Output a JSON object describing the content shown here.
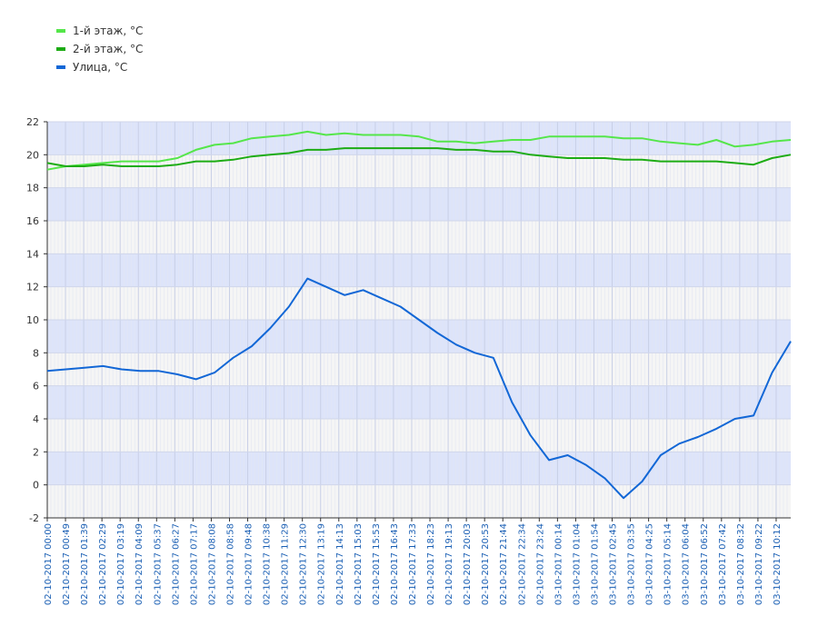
{
  "chart_data": {
    "type": "line",
    "title": "",
    "xlabel": "",
    "ylabel": "",
    "ylim": [
      -2,
      22
    ],
    "yticks": [
      -2,
      0,
      2,
      4,
      6,
      8,
      10,
      12,
      14,
      16,
      18,
      20,
      22
    ],
    "grid": true,
    "legend_position": "top-left",
    "band_colors": [
      "#dde4fa",
      "#f5f5f5"
    ],
    "x_start": "2017-10-02 00:00",
    "x_end": "2017-10-03 10:40",
    "x_tick_labels": [
      "02-10-2017 00:00",
      "02-10-2017 00:49",
      "02-10-2017 01:39",
      "02-10-2017 02:29",
      "02-10-2017 03:19",
      "02-10-2017 04:09",
      "02-10-2017 05:37",
      "02-10-2017 06:27",
      "02-10-2017 07:17",
      "02-10-2017 08:08",
      "02-10-2017 08:58",
      "02-10-2017 09:48",
      "02-10-2017 10:38",
      "02-10-2017 11:29",
      "02-10-2017 12:30",
      "02-10-2017 13:19",
      "02-10-2017 14:13",
      "02-10-2017 15:03",
      "02-10-2017 15:53",
      "02-10-2017 16:43",
      "02-10-2017 17:33",
      "02-10-2017 18:23",
      "02-10-2017 19:13",
      "02-10-2017 20:03",
      "02-10-2017 20:53",
      "02-10-2017 21:44",
      "02-10-2017 22:34",
      "02-10-2017 23:24",
      "03-10-2017 00:14",
      "03-10-2017 01:04",
      "03-10-2017 01:54",
      "03-10-2017 02:45",
      "03-10-2017 03:35",
      "03-10-2017 04:25",
      "03-10-2017 05:14",
      "03-10-2017 06:04",
      "03-10-2017 06:52",
      "03-10-2017 07:42",
      "03-10-2017 08:32",
      "03-10-2017 09:22",
      "03-10-2017 10:12"
    ],
    "series": [
      {
        "name": "1-й этаж, °C",
        "color": "#55e64a",
        "values": [
          19.1,
          19.3,
          19.4,
          19.5,
          19.6,
          19.6,
          19.6,
          19.8,
          20.3,
          20.6,
          20.7,
          21.0,
          21.1,
          21.2,
          21.4,
          21.2,
          21.3,
          21.2,
          21.2,
          21.2,
          21.1,
          20.8,
          20.8,
          20.7,
          20.8,
          20.9,
          20.9,
          21.1,
          21.1,
          21.1,
          21.1,
          21.0,
          21.0,
          20.8,
          20.7,
          20.6,
          20.9,
          20.5,
          20.6,
          20.8,
          20.9
        ]
      },
      {
        "name": "2-й этаж, °C",
        "color": "#1dac14",
        "values": [
          19.5,
          19.3,
          19.3,
          19.4,
          19.3,
          19.3,
          19.3,
          19.4,
          19.6,
          19.6,
          19.7,
          19.9,
          20.0,
          20.1,
          20.3,
          20.3,
          20.4,
          20.4,
          20.4,
          20.4,
          20.4,
          20.4,
          20.3,
          20.3,
          20.2,
          20.2,
          20.0,
          19.9,
          19.8,
          19.8,
          19.8,
          19.7,
          19.7,
          19.6,
          19.6,
          19.6,
          19.6,
          19.5,
          19.4,
          19.8,
          20.0
        ]
      },
      {
        "name": "Улица, °C",
        "color": "#1267d6",
        "values": [
          6.9,
          7.0,
          7.1,
          7.2,
          7.0,
          6.9,
          6.9,
          6.7,
          6.4,
          6.8,
          7.7,
          8.4,
          9.5,
          10.8,
          12.5,
          12.0,
          11.5,
          11.8,
          11.3,
          10.8,
          10.0,
          9.2,
          8.5,
          8.0,
          7.7,
          5.0,
          3.0,
          1.5,
          1.8,
          1.2,
          0.4,
          -0.8,
          0.2,
          1.8,
          2.5,
          2.9,
          3.4,
          4.0,
          4.2,
          6.8,
          8.7
        ]
      }
    ]
  }
}
